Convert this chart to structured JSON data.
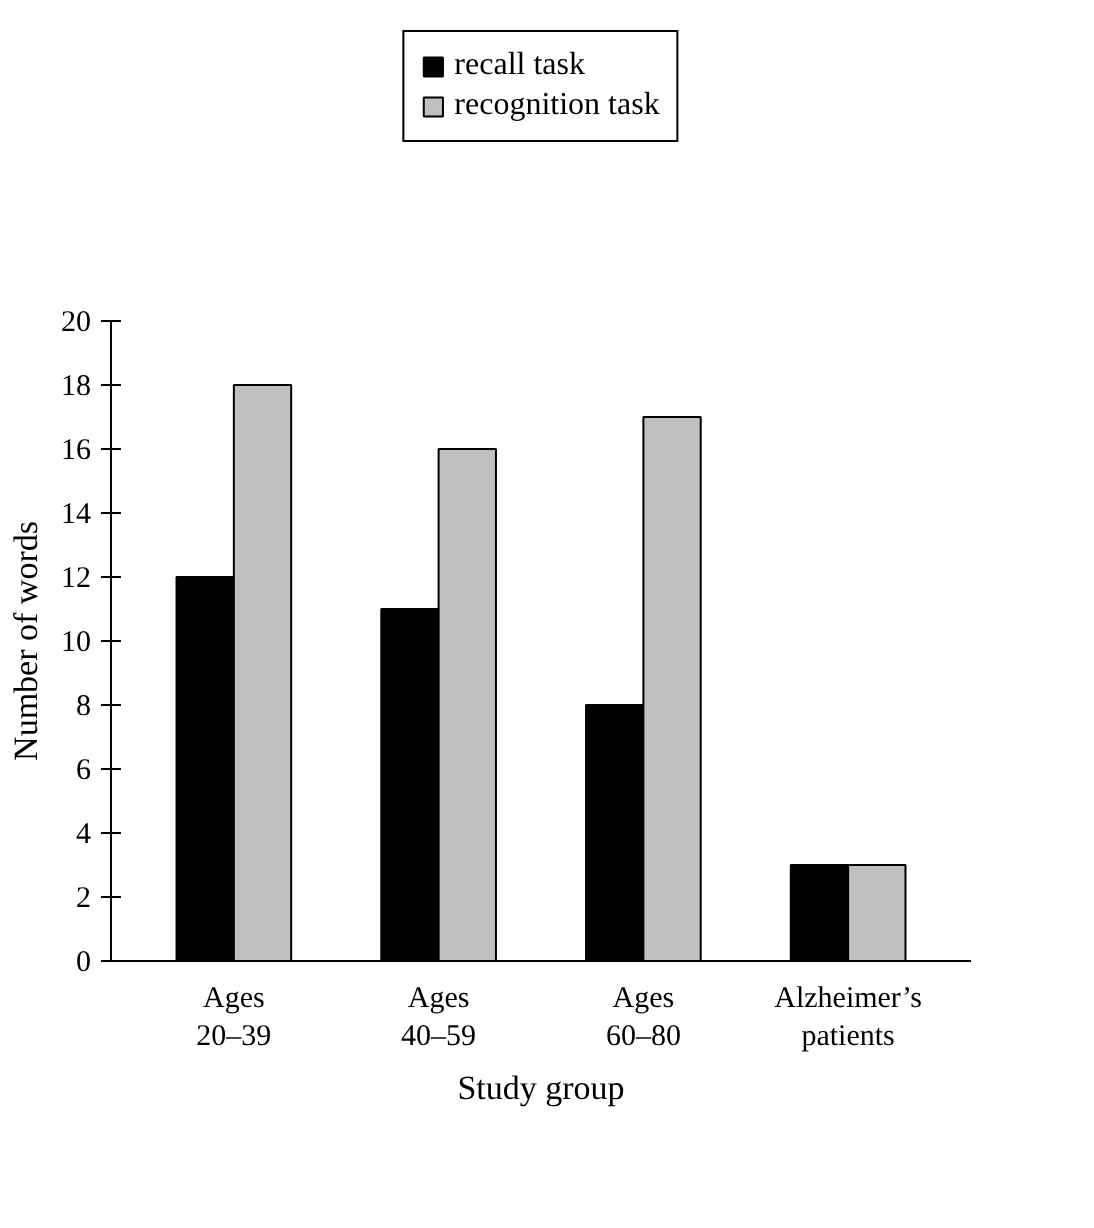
{
  "chart_data": {
    "type": "bar",
    "categories": [
      "Ages\n20–39",
      "Ages\n40–59",
      "Ages\n60–80",
      "Alzheimer’s\npatients"
    ],
    "series": [
      {
        "name": "recall task",
        "color": "#000000",
        "values": [
          12,
          11,
          8,
          3
        ]
      },
      {
        "name": "recognition task",
        "color": "#c0c0c0",
        "values": [
          18,
          16,
          17,
          3
        ]
      }
    ],
    "xlabel": "Study group",
    "ylabel": "Number of words",
    "ylim": [
      0,
      20
    ],
    "yticks": [
      0,
      2,
      4,
      6,
      8,
      10,
      12,
      14,
      16,
      18,
      20
    ],
    "grid": false,
    "legend": "top"
  }
}
